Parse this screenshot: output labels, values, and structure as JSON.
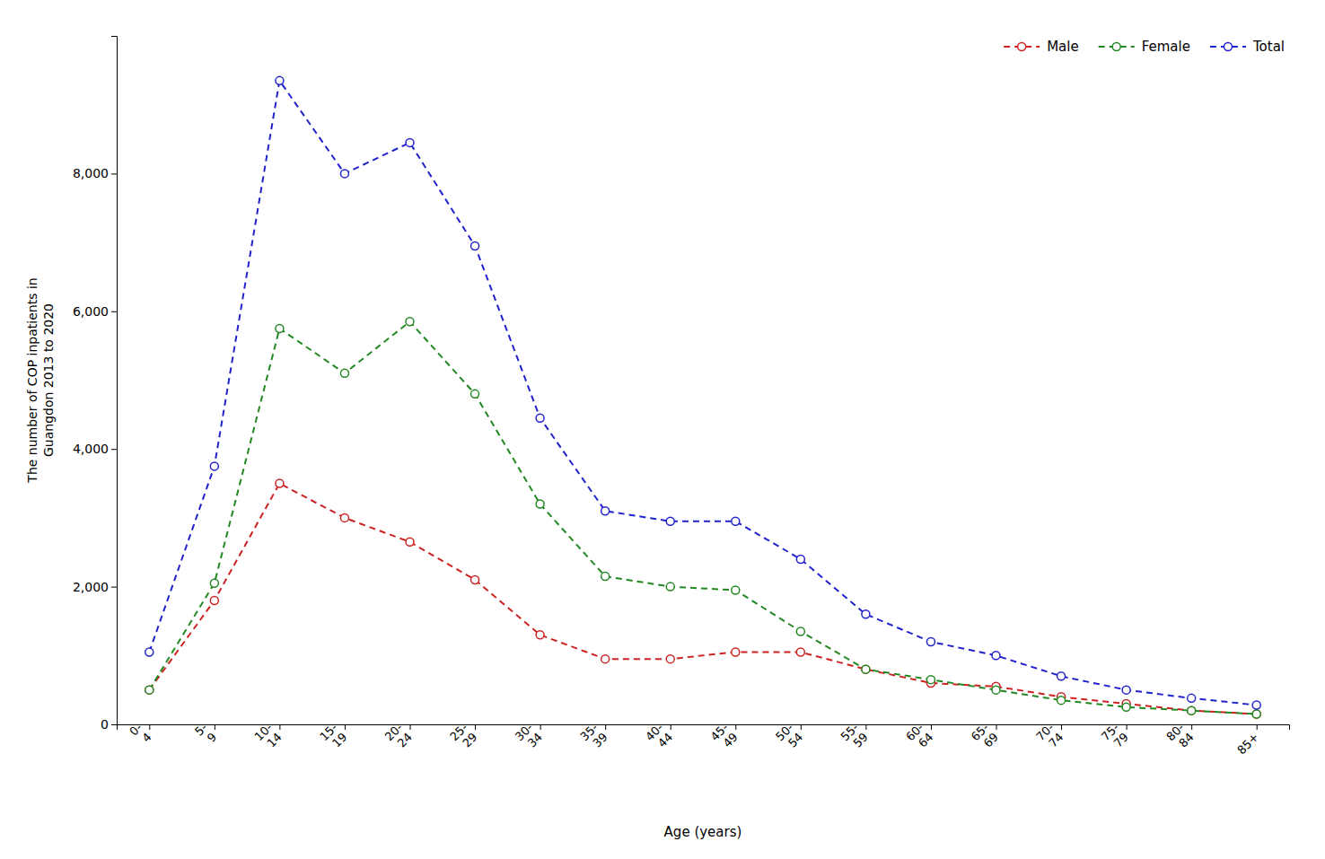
{
  "chart_data": {
    "type": "line",
    "xlabel": "Age (years)",
    "ylabel": "The number of COP inpatients in\nGuangdon 2013 to 2020",
    "categories": [
      "0-\n4",
      "5-\n9",
      "10-\n14",
      "15-\n19",
      "20-\n24",
      "25-\n29",
      "30-\n34",
      "35-\n39",
      "40-\n44",
      "45-\n49",
      "50-\n54",
      "55-\n59",
      "60-\n64",
      "65-\n69",
      "70-\n74",
      "75-\n79",
      "80-\n84",
      "85+"
    ],
    "series": [
      {
        "name": "Male",
        "color": "#cc2222",
        "marker": "circle",
        "line_style": "dashed",
        "values": [
          500,
          1800,
          3500,
          3000,
          2650,
          2100,
          1300,
          950,
          950,
          1050,
          1050,
          800,
          600,
          550,
          400,
          300,
          200,
          150
        ]
      },
      {
        "name": "Female",
        "color": "#228822",
        "marker": "circle",
        "line_style": "dashed",
        "values": [
          500,
          2050,
          5750,
          5100,
          5850,
          4800,
          3200,
          2150,
          2000,
          1950,
          1350,
          800,
          650,
          500,
          350,
          250,
          200,
          150
        ]
      },
      {
        "name": "Total",
        "color": "#2222cc",
        "marker": "circle",
        "line_style": "dashed",
        "values": [
          1050,
          3750,
          9350,
          8000,
          8450,
          6950,
          4450,
          3100,
          2950,
          2950,
          2400,
          1600,
          1200,
          1000,
          700,
          500,
          380,
          280
        ]
      }
    ],
    "ylim": [
      0,
      10000
    ],
    "yticks": [
      0,
      {
        "value": 2000,
        "label": "2,000"
      },
      {
        "value": 4000,
        "label": "4,000"
      },
      {
        "value": 6000,
        "label": "6,000"
      },
      {
        "value": 8000,
        "label": "8,000"
      }
    ],
    "grid": false,
    "legend": "upper right"
  }
}
